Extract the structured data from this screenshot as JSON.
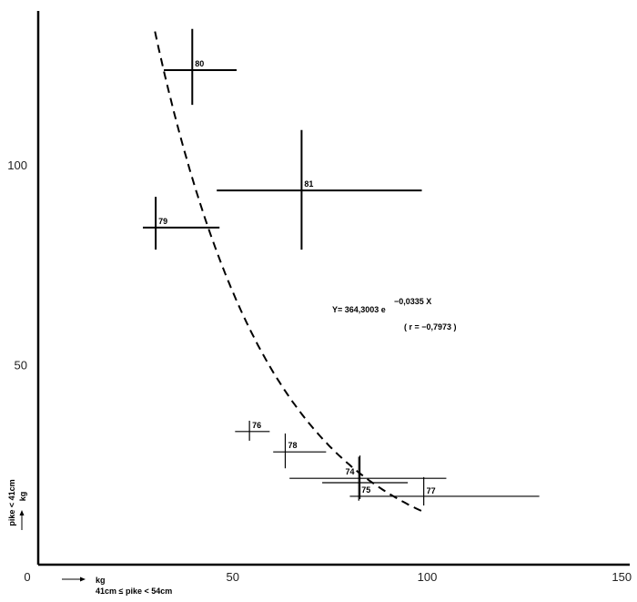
{
  "chart_data": {
    "type": "scatter",
    "title": "",
    "xlabel": "kg",
    "xlabel_sub": "41cm ≤ pike < 54cm",
    "ylabel": "pike < 41cm",
    "ylabel_unit": "kg",
    "xlim": [
      0,
      150
    ],
    "ylim": [
      0,
      140
    ],
    "x_ticks": [
      "0",
      "50",
      "100",
      "150"
    ],
    "y_ticks": [
      "50",
      "100"
    ],
    "grid": false,
    "points": [
      {
        "label": "80",
        "x": 39.6,
        "y": 123.7,
        "x_range": [
          32.3,
          51.0
        ],
        "y_range": [
          115.0,
          134.0
        ]
      },
      {
        "label": "81",
        "x": 67.7,
        "y": 93.6,
        "x_range": [
          45.9,
          98.6
        ],
        "y_range": [
          78.8,
          108.7
        ]
      },
      {
        "label": "79",
        "x": 30.2,
        "y": 84.3,
        "x_range": [
          26.9,
          46.6
        ],
        "y_range": [
          78.8,
          92.0
        ]
      },
      {
        "label": "76",
        "x": 54.3,
        "y": 33.3,
        "x_range": [
          50.6,
          59.5
        ],
        "y_range": [
          31.0,
          36.0
        ]
      },
      {
        "label": "78",
        "x": 63.5,
        "y": 28.2,
        "x_range": [
          60.4,
          74.0
        ],
        "y_range": [
          24.1,
          32.8
        ]
      },
      {
        "label": "74",
        "x": 82.7,
        "y": 21.6,
        "x_range": [
          64.6,
          104.9
        ],
        "y_range": [
          16.4,
          27.3
        ]
      },
      {
        "label": "75",
        "x": 82.4,
        "y": 20.5,
        "x_range": [
          73.0,
          95.0
        ],
        "y_range": [
          16.0,
          27.0
        ]
      },
      {
        "label": "77",
        "x": 99.1,
        "y": 17.1,
        "x_range": [
          80.1,
          128.8
        ],
        "y_range": [
          14.8,
          21.9
        ]
      }
    ],
    "fit": {
      "a": 364.3003,
      "b": -0.0335,
      "x_range": [
        30,
        99
      ],
      "style": "dashed"
    },
    "equation": "Y= 364,3003 e",
    "equation_exp": "−0,0335 X",
    "r_text": "( r = −0,7973 )"
  }
}
